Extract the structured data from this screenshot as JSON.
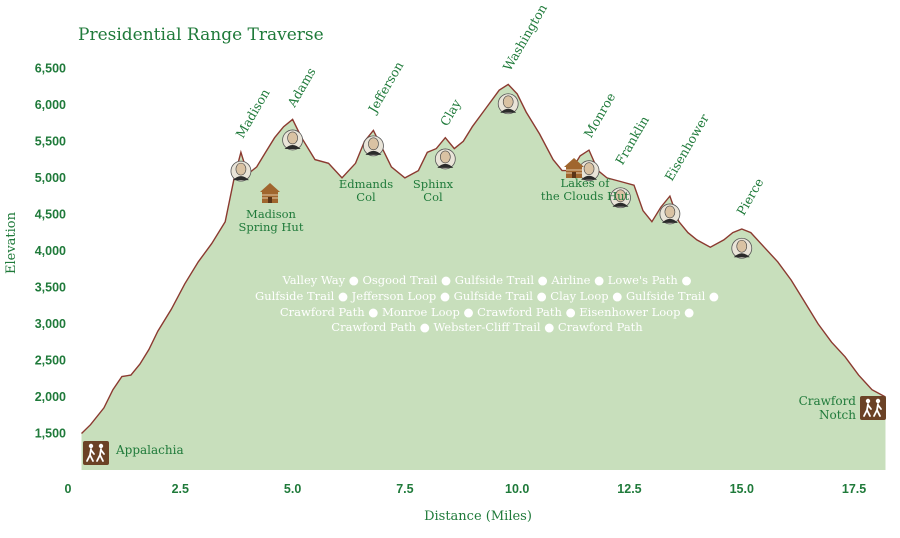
{
  "chart_data": {
    "type": "area",
    "title": "Presidential Range Traverse",
    "xlabel": "Distance (Miles)",
    "ylabel": "Elevation",
    "xlim": [
      0,
      18.3
    ],
    "ylim": [
      1000,
      6600
    ],
    "x_ticks": [
      0,
      2.5,
      5.0,
      7.5,
      10.0,
      12.5,
      15.0,
      17.5
    ],
    "x_tick_labels": [
      "0",
      "2.5",
      "5.0",
      "7.5",
      "10.0",
      "12.5",
      "15.0",
      "17.5"
    ],
    "y_ticks": [
      1500,
      2000,
      2500,
      3000,
      3500,
      4000,
      4500,
      5000,
      5500,
      6000,
      6500
    ],
    "y_tick_labels": [
      "1,500",
      "2,000",
      "2,500",
      "3,000",
      "3,500",
      "4,000",
      "4,500",
      "5,000",
      "5,500",
      "6,000",
      "6,500"
    ],
    "profile": {
      "x": [
        0.3,
        0.5,
        0.8,
        1.0,
        1.2,
        1.4,
        1.6,
        1.8,
        2.0,
        2.3,
        2.6,
        2.9,
        3.2,
        3.5,
        3.7,
        3.85,
        4.0,
        4.2,
        4.4,
        4.6,
        4.8,
        5.0,
        5.2,
        5.5,
        5.8,
        6.1,
        6.4,
        6.6,
        6.8,
        7.0,
        7.2,
        7.5,
        7.8,
        8.0,
        8.2,
        8.4,
        8.6,
        8.8,
        9.0,
        9.3,
        9.6,
        9.8,
        10.0,
        10.2,
        10.5,
        10.8,
        11.0,
        11.2,
        11.4,
        11.6,
        11.8,
        12.0,
        12.3,
        12.6,
        12.8,
        13.0,
        13.2,
        13.4,
        13.6,
        13.8,
        14.0,
        14.3,
        14.6,
        14.8,
        15.0,
        15.2,
        15.5,
        15.8,
        16.1,
        16.4,
        16.7,
        17.0,
        17.3,
        17.6,
        17.9,
        18.2
      ],
      "y": [
        1500,
        1620,
        1850,
        2100,
        2280,
        2300,
        2450,
        2650,
        2900,
        3200,
        3550,
        3850,
        4100,
        4400,
        5000,
        5350,
        5050,
        5150,
        5350,
        5550,
        5700,
        5800,
        5550,
        5250,
        5200,
        5000,
        5200,
        5500,
        5650,
        5400,
        5150,
        5000,
        5100,
        5350,
        5400,
        5550,
        5400,
        5500,
        5700,
        5950,
        6200,
        6280,
        6150,
        5900,
        5600,
        5250,
        5100,
        5100,
        5300,
        5380,
        5100,
        5000,
        4950,
        4900,
        4550,
        4400,
        4600,
        4750,
        4400,
        4250,
        4150,
        4050,
        4150,
        4250,
        4300,
        4250,
        4050,
        3850,
        3600,
        3300,
        3000,
        2750,
        2550,
        2300,
        2100,
        2000
      ]
    },
    "peaks": [
      {
        "name": "Madison",
        "x": 3.85,
        "elevation": 5366
      },
      {
        "name": "Adams",
        "x": 5.0,
        "elevation": 5793
      },
      {
        "name": "Jefferson",
        "x": 6.8,
        "elevation": 5712
      },
      {
        "name": "Clay",
        "x": 8.4,
        "elevation": 5533
      },
      {
        "name": "Washington",
        "x": 9.8,
        "elevation": 6288
      },
      {
        "name": "Monroe",
        "x": 11.6,
        "elevation": 5372
      },
      {
        "name": "Franklin",
        "x": 12.3,
        "elevation": 5001
      },
      {
        "name": "Eisenhower",
        "x": 13.4,
        "elevation": 4780
      },
      {
        "name": "Pierce",
        "x": 15.0,
        "elevation": 4310
      }
    ],
    "annotations": {
      "madison_hut": [
        "Madison",
        "Spring Hut"
      ],
      "edmands_col": [
        "Edmands",
        "Col"
      ],
      "sphinx_col": [
        "Sphinx",
        "Col"
      ],
      "lakes_hut": [
        "Lakes of",
        "the Clouds Hut"
      ],
      "start": "Appalachia",
      "end": [
        "Crawford",
        "Notch"
      ]
    },
    "trails": [
      [
        "Valley Way",
        "Osgood Trail",
        "Gulfside Trail",
        "Airline",
        "Lowe's Path"
      ],
      [
        "Gulfside Trail",
        "Jefferson Loop",
        "Gulfside Trail",
        "Clay Loop",
        "Gulfside Trail"
      ],
      [
        "Crawford Path",
        "Monroe Loop",
        "Crawford Path",
        "Eisenhower Loop"
      ],
      [
        "Crawford Path",
        "Webster-Cliff Trail",
        "Crawford Path"
      ]
    ],
    "colors": {
      "fill": "#c8dfbc",
      "line": "#8b3a30",
      "text": "#1f7a3a",
      "hiker_sign": "#6b4226",
      "hut": "#a0662e"
    }
  }
}
